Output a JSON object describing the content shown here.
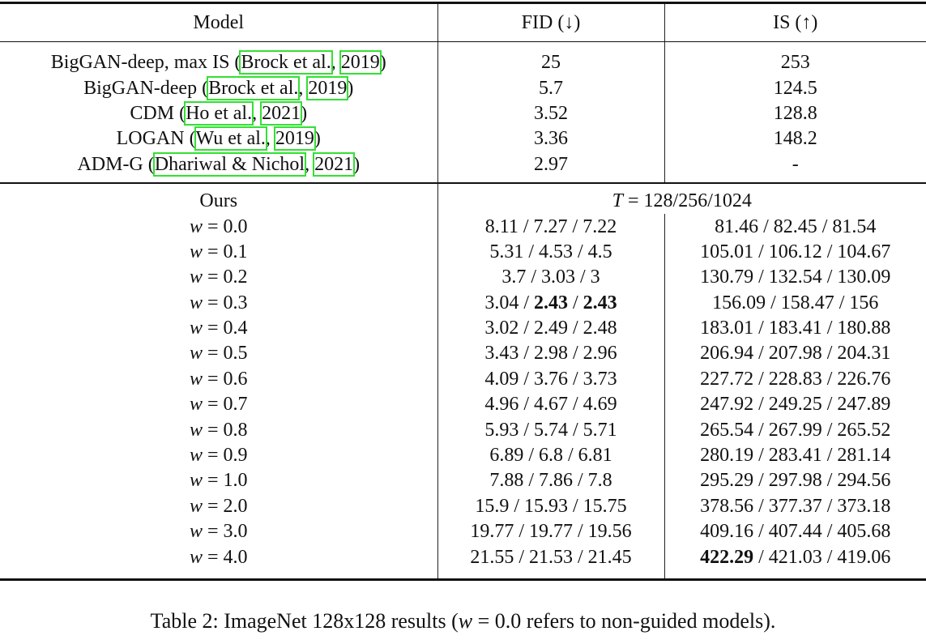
{
  "header": {
    "model": "Model",
    "fid": "FID (↓)",
    "is": "IS (↑)"
  },
  "baselines": [
    {
      "model": {
        "parts": [
          "BigGAN-deep, max IS (",
          "Brock et al.",
          ", ",
          "2019",
          ")"
        ],
        "links": [
          1,
          3
        ]
      },
      "fid": "25",
      "is": "253"
    },
    {
      "model": {
        "parts": [
          "BigGAN-deep (",
          "Brock et al.",
          ", ",
          "2019",
          ")"
        ],
        "links": [
          1,
          3
        ]
      },
      "fid": "5.7",
      "is": "124.5"
    },
    {
      "model": {
        "parts": [
          "CDM (",
          "Ho et al.",
          ", ",
          "2021",
          ")"
        ],
        "links": [
          1,
          3
        ]
      },
      "fid": "3.52",
      "is": "128.8"
    },
    {
      "model": {
        "parts": [
          "LOGAN (",
          "Wu et al.",
          ", ",
          "2019",
          ")"
        ],
        "links": [
          1,
          3
        ]
      },
      "fid": "3.36",
      "is": "148.2"
    },
    {
      "model": {
        "parts": [
          "ADM-G (",
          "Dhariwal & Nichol",
          ", ",
          "2021",
          ")"
        ],
        "links": [
          1,
          3
        ]
      },
      "fid": "2.97",
      "is": "-"
    }
  ],
  "ours": {
    "label": "Ours",
    "setting": {
      "parts": [
        "T = 128/256/1024"
      ],
      "math": [
        0
      ]
    },
    "rows": [
      {
        "w": {
          "parts": [
            "w = 0.0"
          ],
          "math": [
            0
          ]
        },
        "fid": "8.11 / 7.27 / 7.22",
        "is": "81.46 / 82.45 / 81.54"
      },
      {
        "w": {
          "parts": [
            "w = 0.1"
          ],
          "math": [
            0
          ]
        },
        "fid": "5.31 / 4.53 / 4.5",
        "is": "105.01 / 106.12 / 104.67"
      },
      {
        "w": {
          "parts": [
            "w = 0.2"
          ],
          "math": [
            0
          ]
        },
        "fid": "3.7 / 3.03 / 3",
        "is": "130.79 / 132.54 / 130.09"
      },
      {
        "w": {
          "parts": [
            "w = 0.3"
          ],
          "math": [
            0
          ]
        },
        "fid": {
          "parts": [
            "3.04 / ",
            "2.43",
            " / ",
            "2.43"
          ],
          "bold": [
            1,
            3
          ]
        },
        "is": "156.09 / 158.47 / 156"
      },
      {
        "w": {
          "parts": [
            "w = 0.4"
          ],
          "math": [
            0
          ]
        },
        "fid": "3.02 / 2.49 / 2.48",
        "is": "183.01 / 183.41 / 180.88"
      },
      {
        "w": {
          "parts": [
            "w = 0.5"
          ],
          "math": [
            0
          ]
        },
        "fid": "3.43 / 2.98 / 2.96",
        "is": "206.94 / 207.98 / 204.31"
      },
      {
        "w": {
          "parts": [
            "w = 0.6"
          ],
          "math": [
            0
          ]
        },
        "fid": "4.09 / 3.76 / 3.73",
        "is": "227.72 / 228.83 / 226.76"
      },
      {
        "w": {
          "parts": [
            "w = 0.7"
          ],
          "math": [
            0
          ]
        },
        "fid": "4.96 / 4.67 / 4.69",
        "is": "247.92 / 249.25 / 247.89"
      },
      {
        "w": {
          "parts": [
            "w = 0.8"
          ],
          "math": [
            0
          ]
        },
        "fid": "5.93 / 5.74 / 5.71",
        "is": "265.54 / 267.99 / 265.52"
      },
      {
        "w": {
          "parts": [
            "w = 0.9"
          ],
          "math": [
            0
          ]
        },
        "fid": "6.89 / 6.8 / 6.81",
        "is": "280.19 / 283.41 / 281.14"
      },
      {
        "w": {
          "parts": [
            "w = 1.0"
          ],
          "math": [
            0
          ]
        },
        "fid": "7.88 / 7.86 / 7.8",
        "is": "295.29 / 297.98 / 294.56"
      },
      {
        "w": {
          "parts": [
            "w = 2.0"
          ],
          "math": [
            0
          ]
        },
        "fid": "15.9 / 15.93 / 15.75",
        "is": "378.56 / 377.37 / 373.18"
      },
      {
        "w": {
          "parts": [
            "w = 3.0"
          ],
          "math": [
            0
          ]
        },
        "fid": "19.77 / 19.77 / 19.56",
        "is": "409.16 / 407.44 / 405.68"
      },
      {
        "w": {
          "parts": [
            "w = 4.0"
          ],
          "math": [
            0
          ]
        },
        "fid": "21.55 / 21.53 / 21.45",
        "is": {
          "parts": [
            "422.29",
            " / 421.03 / 419.06"
          ],
          "bold": [
            0
          ]
        }
      }
    ]
  },
  "caption": {
    "parts": [
      "Table 2: ImageNet 128x128 results (",
      "w = 0.0",
      " refers to non-guided models)."
    ],
    "math": [
      1
    ]
  }
}
